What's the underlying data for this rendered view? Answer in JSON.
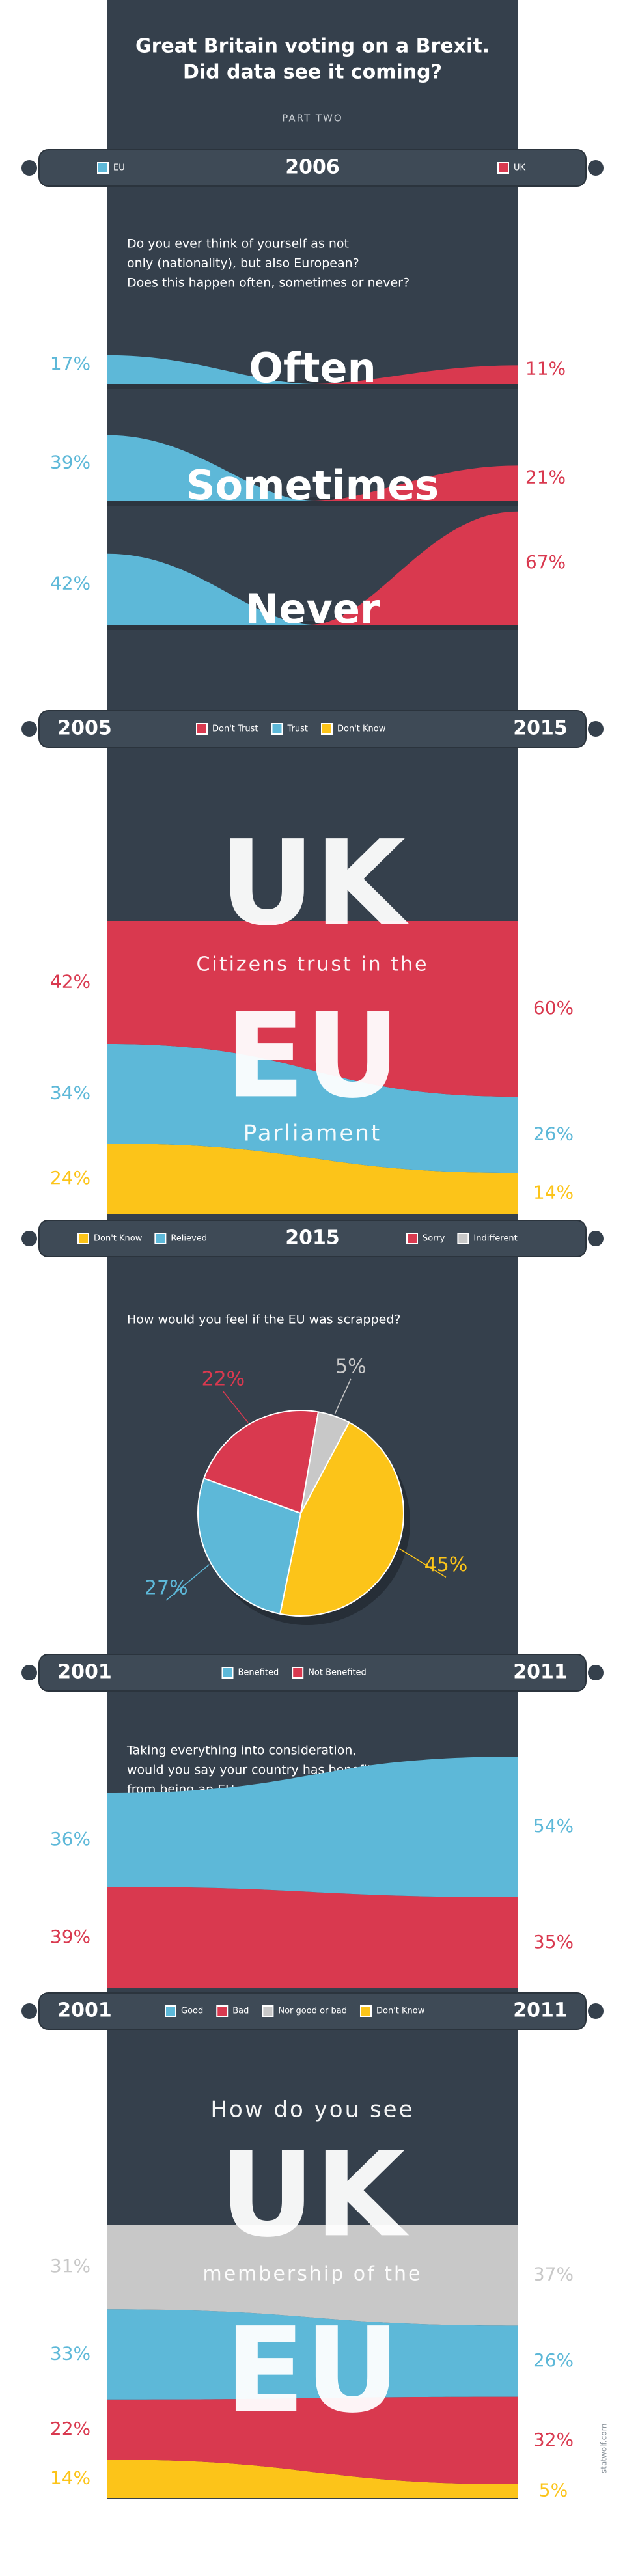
{
  "header": {
    "title": [
      "Great Britain voting on a Brexit.",
      "Did data see it coming?"
    ],
    "subtitle": "PART TWO"
  },
  "footer": "statwolf.com",
  "chart_data": [
    {
      "type": "paired",
      "year": "2006",
      "question": [
        "Do you ever think of yourself as not",
        "only (nationality), but also European?",
        "Does this happen often, sometimes or never?"
      ],
      "categories": [
        "Often",
        "Sometimes",
        "Never"
      ],
      "series": [
        {
          "name": "EU",
          "color": "#5db8d8",
          "values": [
            17,
            39,
            42
          ],
          "value_labels": [
            "17%",
            "39%",
            "42%"
          ]
        },
        {
          "name": "UK",
          "color": "#d9394f",
          "values": [
            11,
            21,
            67
          ],
          "value_labels": [
            "11%",
            "21%",
            "67%"
          ]
        }
      ]
    },
    {
      "type": "stream",
      "x": [
        "2005",
        "2015"
      ],
      "title": [
        "UK",
        "Citizens trust in the",
        "EU",
        "Parliament"
      ],
      "series": [
        {
          "name": "Don't Trust",
          "color": "#d9394f",
          "values": [
            42,
            60
          ],
          "value_labels": [
            "42%",
            "60%"
          ]
        },
        {
          "name": "Trust",
          "color": "#5db8d8",
          "values": [
            34,
            26
          ],
          "value_labels": [
            "34%",
            "26%"
          ]
        },
        {
          "name": "Don't Know",
          "color": "#fcc419",
          "values": [
            24,
            14
          ],
          "value_labels": [
            "24%",
            "14%"
          ]
        }
      ]
    },
    {
      "type": "pie",
      "year": "2015",
      "question": [
        "How would you feel if the EU was scrapped?"
      ],
      "categories": [
        "Don't Know",
        "Relieved",
        "Sorry",
        "Indifferent"
      ],
      "colors": [
        "#fcc419",
        "#5db8d8",
        "#d9394f",
        "#c8c8c8"
      ],
      "values": [
        45,
        27,
        22,
        5
      ],
      "value_labels": [
        "45%",
        "27%",
        "22%",
        "5%"
      ]
    },
    {
      "type": "stream",
      "x": [
        "2001",
        "2011"
      ],
      "question": [
        "Taking everything into consideration,",
        "would you say your country has benefited",
        "from being an EU member?"
      ],
      "series": [
        {
          "name": "Benefited",
          "color": "#5db8d8",
          "values": [
            36,
            54
          ],
          "value_labels": [
            "36%",
            "54%"
          ]
        },
        {
          "name": "Not Benefited",
          "color": "#d9394f",
          "values": [
            39,
            35
          ],
          "value_labels": [
            "39%",
            "35%"
          ]
        }
      ]
    },
    {
      "type": "stream",
      "x": [
        "2001",
        "2011"
      ],
      "title": [
        "How do you see",
        "UK",
        "membership of the",
        "EU"
      ],
      "series": [
        {
          "name": "Good",
          "color": "#5db8d8",
          "values": [
            33,
            26
          ],
          "value_labels": [
            "33%",
            "26%"
          ]
        },
        {
          "name": "Bad",
          "color": "#d9394f",
          "values": [
            22,
            32
          ],
          "value_labels": [
            "22%",
            "32%"
          ]
        },
        {
          "name": "Nor good or bad",
          "color": "#c8c8c8",
          "values": [
            31,
            37
          ],
          "value_labels": [
            "31%",
            "37%"
          ]
        },
        {
          "name": "Don't Know",
          "color": "#fcc419",
          "values": [
            14,
            5
          ],
          "value_labels": [
            "14%",
            "5%"
          ]
        }
      ]
    }
  ]
}
